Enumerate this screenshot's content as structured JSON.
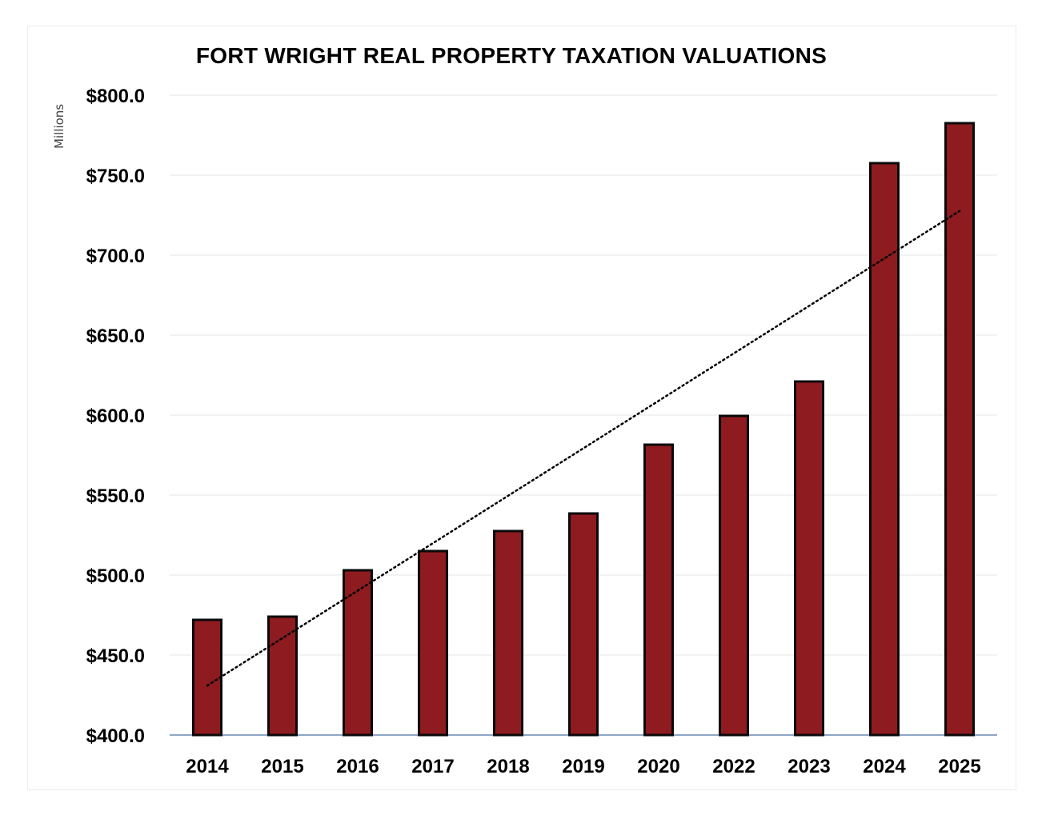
{
  "chart_data": {
    "type": "bar",
    "title": "FORT WRIGHT REAL PROPERTY TAXATION VALUATIONS",
    "ylabel": "Millions",
    "xlabel": "",
    "categories": [
      "2014",
      "2015",
      "2016",
      "2017",
      "2018",
      "2019",
      "2020",
      "2022",
      "2023",
      "2024",
      "2025"
    ],
    "series": [
      {
        "values": [
          472.0,
          474.0,
          503.0,
          515.0,
          527.5,
          538.5,
          581.5,
          599.5,
          621.0,
          757.5,
          782.5
        ]
      }
    ],
    "trendline": {
      "type": "linear",
      "style": "dotted"
    },
    "ylim": [
      400,
      800
    ],
    "yticks": [
      400,
      450,
      500,
      550,
      600,
      650,
      700,
      750,
      800
    ],
    "ytick_labels": [
      "$400.0",
      "$450.0",
      "$500.0",
      "$550.0",
      "$600.0",
      "$650.0",
      "$700.0",
      "$750.0",
      "$800.0"
    ],
    "grid": true,
    "colors": {
      "bar": "#8e1b1f",
      "bar_edge": "#0a0a0a",
      "trendline": "#000000",
      "grid": "#e6e6e6",
      "axis": "#4a6fa5"
    }
  }
}
